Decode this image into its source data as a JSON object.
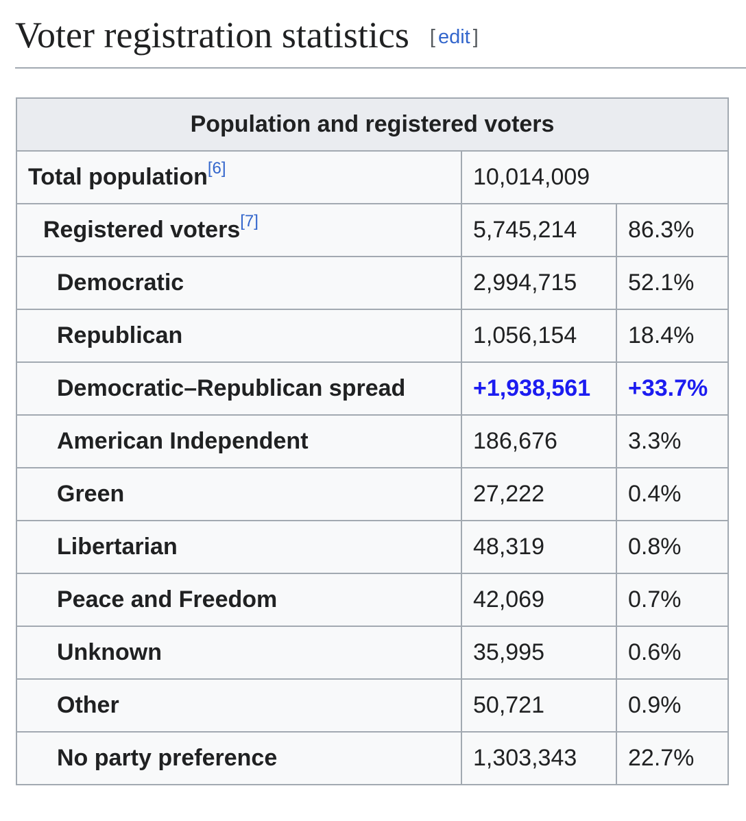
{
  "heading": {
    "title": "Voter registration statistics",
    "edit_open": "[",
    "edit": "edit",
    "edit_close": "]"
  },
  "table": {
    "caption": "Population and registered voters",
    "rows": [
      {
        "label": "Total population",
        "ref": "[6]",
        "count": "10,014,009"
      },
      {
        "label": "Registered voters",
        "ref": "[7]",
        "count": "5,745,214",
        "percent": "86.3%"
      },
      {
        "label": "Democratic",
        "count": "2,994,715",
        "percent": "52.1%"
      },
      {
        "label": "Republican",
        "count": "1,056,154",
        "percent": "18.4%"
      },
      {
        "label": "Democratic–Republican spread",
        "count": "+1,938,561",
        "percent": "+33.7%",
        "color": "#1c1cf0"
      },
      {
        "label": "American Independent",
        "count": "186,676",
        "percent": "3.3%"
      },
      {
        "label": "Green",
        "count": "27,222",
        "percent": "0.4%"
      },
      {
        "label": "Libertarian",
        "count": "48,319",
        "percent": "0.8%"
      },
      {
        "label": "Peace and Freedom",
        "count": "42,069",
        "percent": "0.7%"
      },
      {
        "label": "Unknown",
        "count": "35,995",
        "percent": "0.6%"
      },
      {
        "label": "Other",
        "count": "50,721",
        "percent": "0.9%"
      },
      {
        "label": "No party preference",
        "count": "1,303,343",
        "percent": "22.7%"
      }
    ]
  }
}
